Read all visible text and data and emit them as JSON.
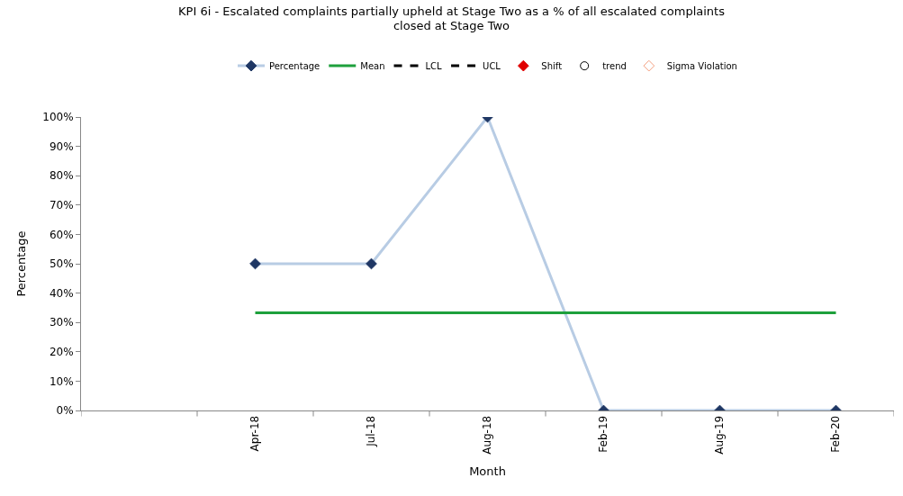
{
  "chart_data": {
    "type": "line",
    "title": "KPI 6i - Escalated complaints partially upheld at Stage Two as a % of all escalated complaints closed at Stage Two",
    "xlabel": "Month",
    "ylabel": "Percentage",
    "categories": [
      null,
      "Apr-18",
      "Jul-18",
      "Aug-18",
      "Feb-19",
      "Aug-19",
      "Feb-20"
    ],
    "ylim": [
      0,
      100
    ],
    "yticks": [
      {
        "value": 0,
        "label": "0%"
      },
      {
        "value": 10,
        "label": "10%"
      },
      {
        "value": 20,
        "label": "20%"
      },
      {
        "value": 30,
        "label": "30%"
      },
      {
        "value": 40,
        "label": "40%"
      },
      {
        "value": 50,
        "label": "50%"
      },
      {
        "value": 60,
        "label": "60%"
      },
      {
        "value": 70,
        "label": "70%"
      },
      {
        "value": 80,
        "label": "80%"
      },
      {
        "value": 90,
        "label": "90%"
      },
      {
        "value": 100,
        "label": "100%"
      }
    ],
    "legend": "top",
    "series": [
      {
        "name": "Percentage",
        "color": "#b8cce4",
        "marker": "diamond",
        "line_style": "solid",
        "values": [
          null,
          50,
          50,
          100,
          0,
          0,
          0
        ]
      },
      {
        "name": "Mean",
        "color": "#1ea03c",
        "marker": "none",
        "line_style": "solid",
        "values": [
          null,
          33.3,
          33.3,
          33.3,
          33.3,
          33.3,
          33.3
        ]
      },
      {
        "name": "LCL",
        "color": "#000000",
        "marker": "none",
        "line_style": "dashed",
        "values": [
          null,
          null,
          null,
          null,
          null,
          null,
          null
        ]
      },
      {
        "name": "UCL",
        "color": "#000000",
        "marker": "none",
        "line_style": "dashed",
        "values": [
          null,
          null,
          null,
          null,
          null,
          null,
          null
        ]
      },
      {
        "name": "Shift",
        "color": "#e00000",
        "type": "scatter",
        "marker": "diamond",
        "values": [
          null,
          null,
          null,
          null,
          null,
          null,
          null
        ]
      },
      {
        "name": "trend",
        "color": "#000000",
        "type": "scatter",
        "marker": "circle-open",
        "values": [
          null,
          null,
          null,
          null,
          null,
          null,
          null
        ]
      },
      {
        "name": "Sigma Violation",
        "color": "#f4a080",
        "type": "scatter",
        "marker": "diamond-open",
        "values": [
          null,
          null,
          null,
          null,
          null,
          null,
          null
        ]
      }
    ]
  }
}
